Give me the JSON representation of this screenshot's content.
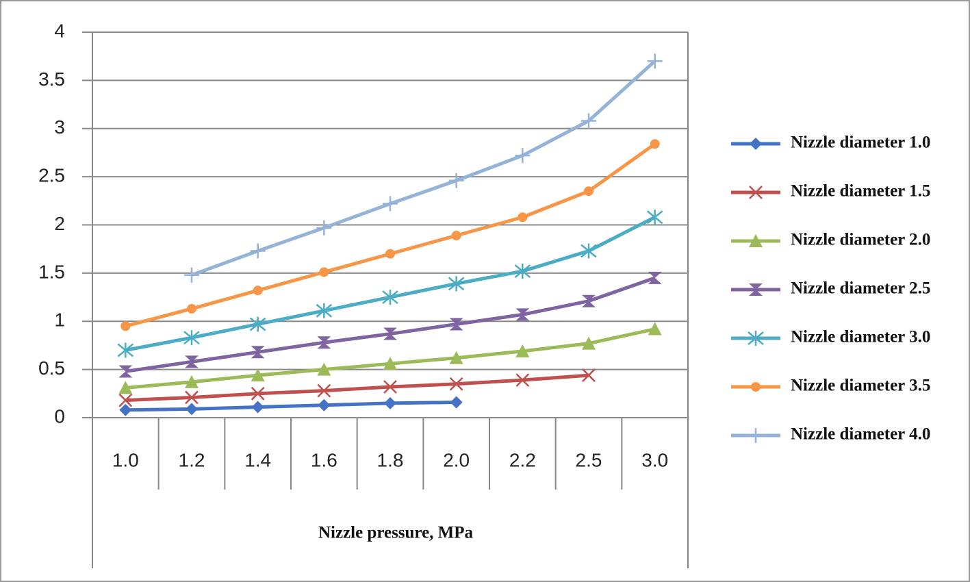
{
  "chart_data": {
    "type": "line",
    "x_label": "Nizzle pressure, MPa",
    "categories": [
      "1.0",
      "1.2",
      "1.4",
      "1.6",
      "1.8",
      "2.0",
      "2.2",
      "2.5",
      "3.0"
    ],
    "ylim": [
      0,
      4
    ],
    "yticks": [
      0,
      0.5,
      1,
      1.5,
      2,
      2.5,
      3,
      3.5,
      4
    ],
    "grid": true,
    "legend": "right",
    "series": [
      {
        "name": "Nizzle diameter 1.0",
        "color": "#4472c4",
        "marker": "diamond",
        "values": [
          0.08,
          0.09,
          0.11,
          0.13,
          0.15,
          0.16,
          null,
          null,
          null
        ]
      },
      {
        "name": "Nizzle diameter 1.5",
        "color": "#c0504d",
        "marker": "x",
        "values": [
          0.18,
          0.21,
          0.25,
          0.28,
          0.32,
          0.35,
          0.39,
          0.44,
          null
        ]
      },
      {
        "name": "Nizzle diameter 2.0",
        "color": "#9bbb59",
        "marker": "triangle",
        "values": [
          0.31,
          0.37,
          0.44,
          0.5,
          0.56,
          0.62,
          0.69,
          0.77,
          0.92
        ]
      },
      {
        "name": "Nizzle diameter 2.5",
        "color": "#8064a2",
        "marker": "hourglass",
        "values": [
          0.48,
          0.58,
          0.68,
          0.78,
          0.87,
          0.97,
          1.07,
          1.21,
          1.45
        ]
      },
      {
        "name": "Nizzle diameter 3.0",
        "color": "#4bacc6",
        "marker": "asterisk",
        "values": [
          0.7,
          0.83,
          0.97,
          1.11,
          1.25,
          1.39,
          1.52,
          1.73,
          2.08
        ]
      },
      {
        "name": "Nizzle diameter 3.5",
        "color": "#f79646",
        "marker": "circle",
        "values": [
          0.95,
          1.13,
          1.32,
          1.51,
          1.7,
          1.89,
          2.08,
          2.35,
          2.84
        ]
      },
      {
        "name": "Nizzle diameter 4.0",
        "color": "#95b3d7",
        "marker": "plus",
        "values": [
          null,
          1.48,
          1.73,
          1.97,
          2.22,
          2.46,
          2.72,
          3.08,
          3.7
        ]
      }
    ]
  }
}
